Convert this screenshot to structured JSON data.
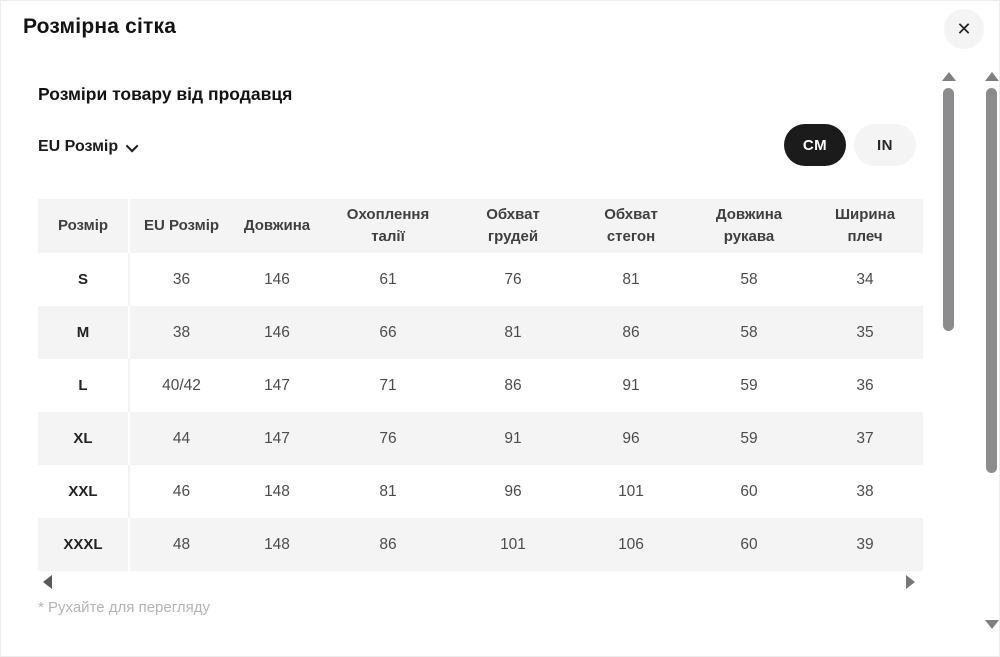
{
  "modal": {
    "title": "Розмірна сітка",
    "close_icon": "✕",
    "section_title": "Розміри товару від продавця",
    "dropdown": {
      "label": "EU Розмір"
    },
    "unit_toggle": {
      "cm_label": "CM",
      "in_label": "IN",
      "active": "CM"
    },
    "hint": "* Рухайте для перегляду"
  },
  "table": {
    "headers": [
      "Розмір",
      "EU Розмір",
      "Довжина",
      "Охоплення\nталії",
      "Обхват\nгрудей",
      "Обхват\nстегон",
      "Довжина\nрукава",
      "Ширина\nплеч"
    ],
    "rows": [
      {
        "size": "S",
        "values": [
          "36",
          "146",
          "61",
          "76",
          "81",
          "58",
          "34"
        ]
      },
      {
        "size": "M",
        "values": [
          "38",
          "146",
          "66",
          "81",
          "86",
          "58",
          "35"
        ]
      },
      {
        "size": "L",
        "values": [
          "40/42",
          "147",
          "71",
          "86",
          "91",
          "59",
          "36"
        ]
      },
      {
        "size": "XL",
        "values": [
          "44",
          "147",
          "76",
          "91",
          "96",
          "59",
          "37"
        ]
      },
      {
        "size": "XXL",
        "values": [
          "46",
          "148",
          "81",
          "96",
          "101",
          "60",
          "38"
        ]
      },
      {
        "size": "XXXL",
        "values": [
          "48",
          "148",
          "86",
          "101",
          "106",
          "60",
          "39"
        ]
      }
    ]
  },
  "colors": {
    "accent_black": "#1b1b1b",
    "row_stripe": "#f4f4f4",
    "hint_text": "#b4b4b8",
    "scrollbar_thumb": "#8c8c8f"
  }
}
